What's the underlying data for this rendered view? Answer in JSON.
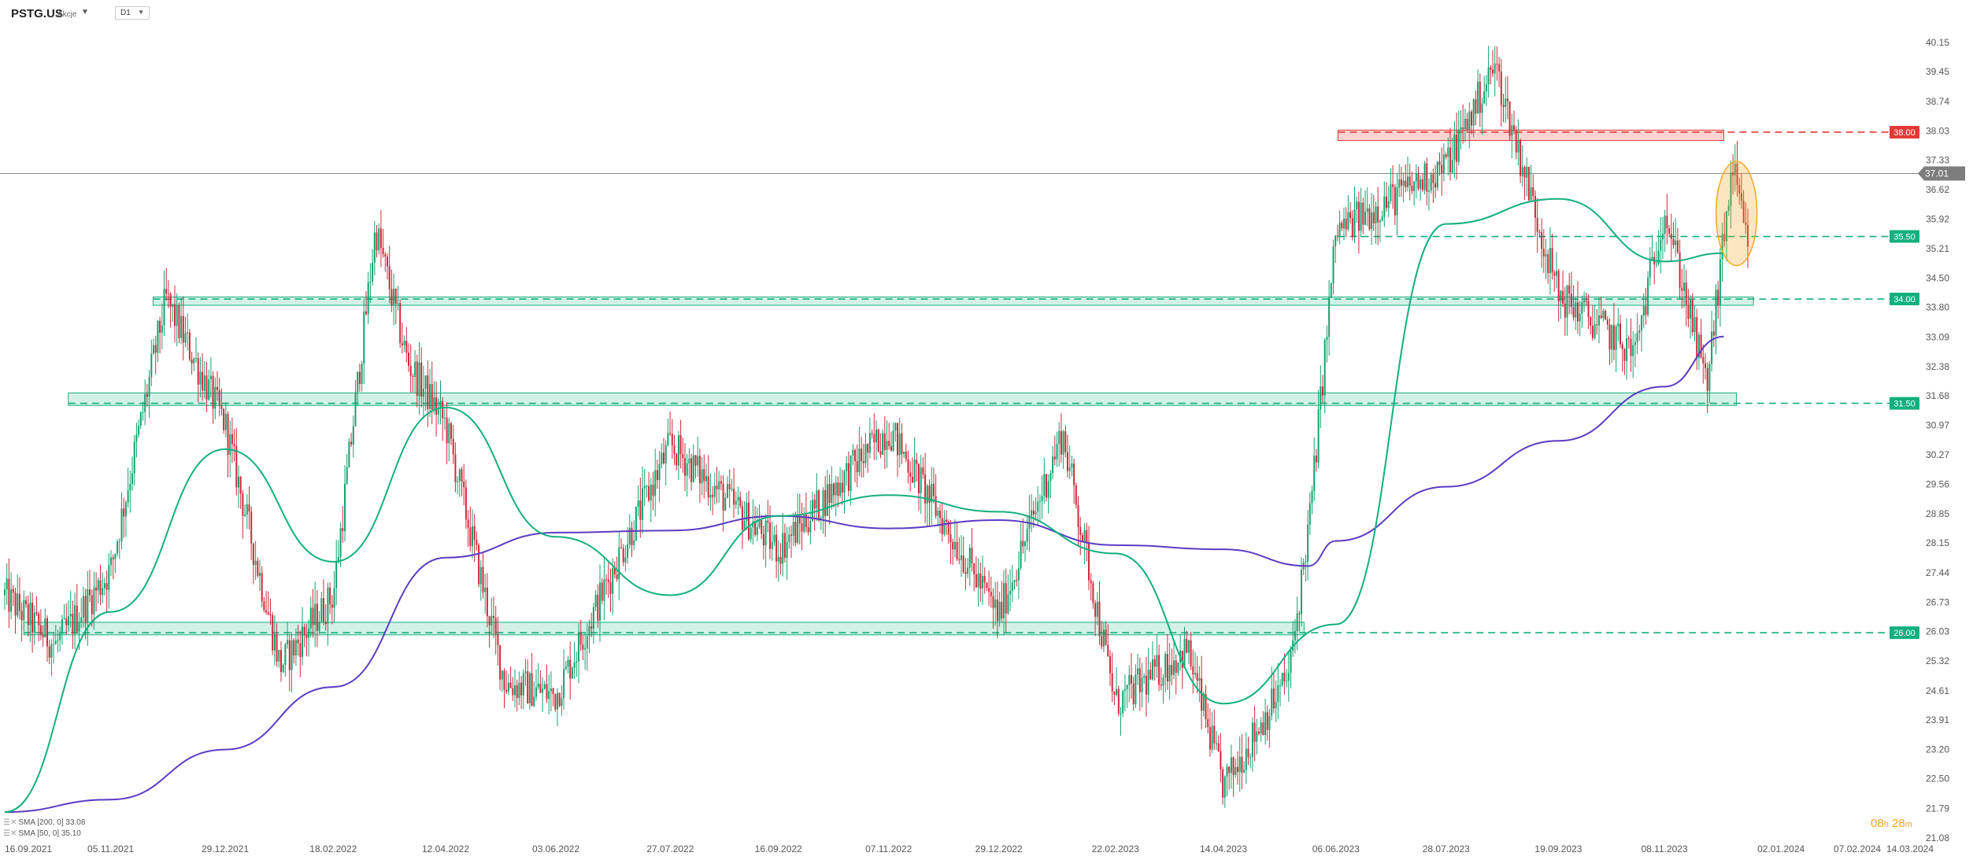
{
  "header": {
    "symbol": "PSTG.US",
    "symbol_type": "Akcje",
    "timeframe": "D1"
  },
  "legend": [
    {
      "label": "SMA [200, 0] 33.08",
      "color": "#5b3cc4"
    },
    {
      "label": "SMA [50, 0] 35.10",
      "color": "#13b07e"
    }
  ],
  "countdown": {
    "hours": "08",
    "h": "h",
    "minutes": "28",
    "m": "m"
  },
  "chart_data": {
    "type": "candlestick",
    "instrument": "PSTG.US",
    "timeframe": "D1",
    "ylim": [
      21.08,
      40.5
    ],
    "price_ticks": [
      "40.15",
      "39.45",
      "38.74",
      "38.03",
      "37.33",
      "36.62",
      "35.92",
      "35.21",
      "34.50",
      "33.80",
      "33.09",
      "32.38",
      "31.68",
      "30.97",
      "30.27",
      "29.56",
      "28.85",
      "28.15",
      "27.44",
      "26.73",
      "26.03",
      "25.32",
      "24.61",
      "23.91",
      "23.20",
      "22.50",
      "21.79",
      "21.08"
    ],
    "date_ticks": [
      "16.09.2021",
      "05.11.2021",
      "29.12.2021",
      "18.02.2022",
      "12.04.2022",
      "03.06.2022",
      "27.07.2022",
      "16.09.2022",
      "07.11.2022",
      "29.12.2022",
      "22.02.2023",
      "14.04.2023",
      "06.06.2023",
      "28.07.2023",
      "19.09.2023",
      "08.11.2023",
      "02.01.2024",
      "07.02.2024",
      "14.03.2024"
    ],
    "current_price": {
      "value": 37.01,
      "label": "37.01"
    },
    "levels": [
      {
        "value": 38.0,
        "label": "38.00",
        "color": "#e53935",
        "zone": [
          37.8,
          38.05
        ],
        "zone_from": "07.06.2023",
        "zone_to": "06.12.2023"
      },
      {
        "value": 35.5,
        "label": "35.50",
        "color": "#13b07e"
      },
      {
        "value": 34.0,
        "label": "34.00",
        "color": "#13b07e",
        "zone": [
          33.85,
          34.05
        ],
        "zone_from": "25.11.2021",
        "zone_to": "20.12.2023"
      },
      {
        "value": 31.5,
        "label": "31.50",
        "color": "#13b07e",
        "zone": [
          31.45,
          31.75
        ],
        "zone_from": "16.10.2021",
        "zone_to": "12.12.2023"
      },
      {
        "value": 26.0,
        "label": "26.00",
        "color": "#13b07e",
        "zone": [
          25.95,
          26.25
        ],
        "zone_from": "25.09.2021",
        "zone_to": "22.05.2023"
      }
    ],
    "highlight_ellipse": {
      "date": "12.12.2023",
      "price_range": [
        34.8,
        37.3
      ],
      "color": "#f5a623"
    },
    "series": [
      {
        "name": "price",
        "type": "candles",
        "path": [
          [
            "16.09.2021",
            26.9
          ],
          [
            "10.10.2021",
            25.7
          ],
          [
            "05.11.2021",
            27.5
          ],
          [
            "01.12.2021",
            34.0
          ],
          [
            "29.12.2021",
            31.0
          ],
          [
            "24.01.2022",
            25.2
          ],
          [
            "18.02.2022",
            26.9
          ],
          [
            "10.03.2022",
            35.7
          ],
          [
            "25.03.2022",
            32.5
          ],
          [
            "12.04.2022",
            31.0
          ],
          [
            "10.05.2022",
            24.8
          ],
          [
            "03.06.2022",
            24.5
          ],
          [
            "27.07.2022",
            30.5
          ],
          [
            "16.09.2022",
            28.0
          ],
          [
            "07.11.2022",
            30.9
          ],
          [
            "29.12.2022",
            26.4
          ],
          [
            "28.01.2023",
            30.8
          ],
          [
            "22.02.2023",
            24.3
          ],
          [
            "28.03.2023",
            25.6
          ],
          [
            "14.04.2023",
            22.3
          ],
          [
            "15.05.2023",
            25.0
          ],
          [
            "25.05.2023",
            28.9
          ],
          [
            "06.06.2023",
            35.6
          ],
          [
            "28.07.2023",
            37.2
          ],
          [
            "20.08.2023",
            39.6
          ],
          [
            "19.09.2023",
            34.1
          ],
          [
            "25.10.2023",
            32.7
          ],
          [
            "08.11.2023",
            36.2
          ],
          [
            "28.11.2023",
            31.9
          ],
          [
            "10.12.2023",
            37.2
          ],
          [
            "18.12.2023",
            35.0
          ]
        ]
      },
      {
        "name": "SMA [200, 0] 33.08",
        "type": "line",
        "color": "#5b3cc4",
        "path": [
          [
            "16.09.2021",
            21.7
          ],
          [
            "05.11.2021",
            22.0
          ],
          [
            "29.12.2021",
            23.2
          ],
          [
            "18.02.2022",
            24.7
          ],
          [
            "12.04.2022",
            27.8
          ],
          [
            "03.06.2022",
            28.4
          ],
          [
            "27.07.2022",
            28.45
          ],
          [
            "16.09.2022",
            28.8
          ],
          [
            "07.11.2022",
            28.5
          ],
          [
            "29.12.2022",
            28.7
          ],
          [
            "22.02.2023",
            28.1
          ],
          [
            "14.04.2023",
            28.0
          ],
          [
            "24.05.2023",
            27.6
          ],
          [
            "06.06.2023",
            28.2
          ],
          [
            "28.07.2023",
            29.5
          ],
          [
            "19.09.2023",
            30.6
          ],
          [
            "08.11.2023",
            31.9
          ],
          [
            "06.12.2023",
            33.1
          ]
        ]
      },
      {
        "name": "SMA [50, 0] 35.10",
        "type": "line",
        "color": "#13b07e",
        "path": [
          [
            "16.09.2021",
            21.7
          ],
          [
            "05.11.2021",
            26.5
          ],
          [
            "29.12.2021",
            30.4
          ],
          [
            "18.02.2022",
            27.7
          ],
          [
            "12.04.2022",
            31.4
          ],
          [
            "03.06.2022",
            28.3
          ],
          [
            "27.07.2022",
            26.9
          ],
          [
            "16.09.2022",
            28.8
          ],
          [
            "07.11.2022",
            29.3
          ],
          [
            "29.12.2022",
            28.9
          ],
          [
            "22.02.2023",
            27.9
          ],
          [
            "14.04.2023",
            24.3
          ],
          [
            "06.06.2023",
            26.2
          ],
          [
            "28.07.2023",
            35.8
          ],
          [
            "19.09.2023",
            36.4
          ],
          [
            "08.11.2023",
            34.9
          ],
          [
            "06.12.2023",
            35.1
          ]
        ]
      }
    ]
  }
}
